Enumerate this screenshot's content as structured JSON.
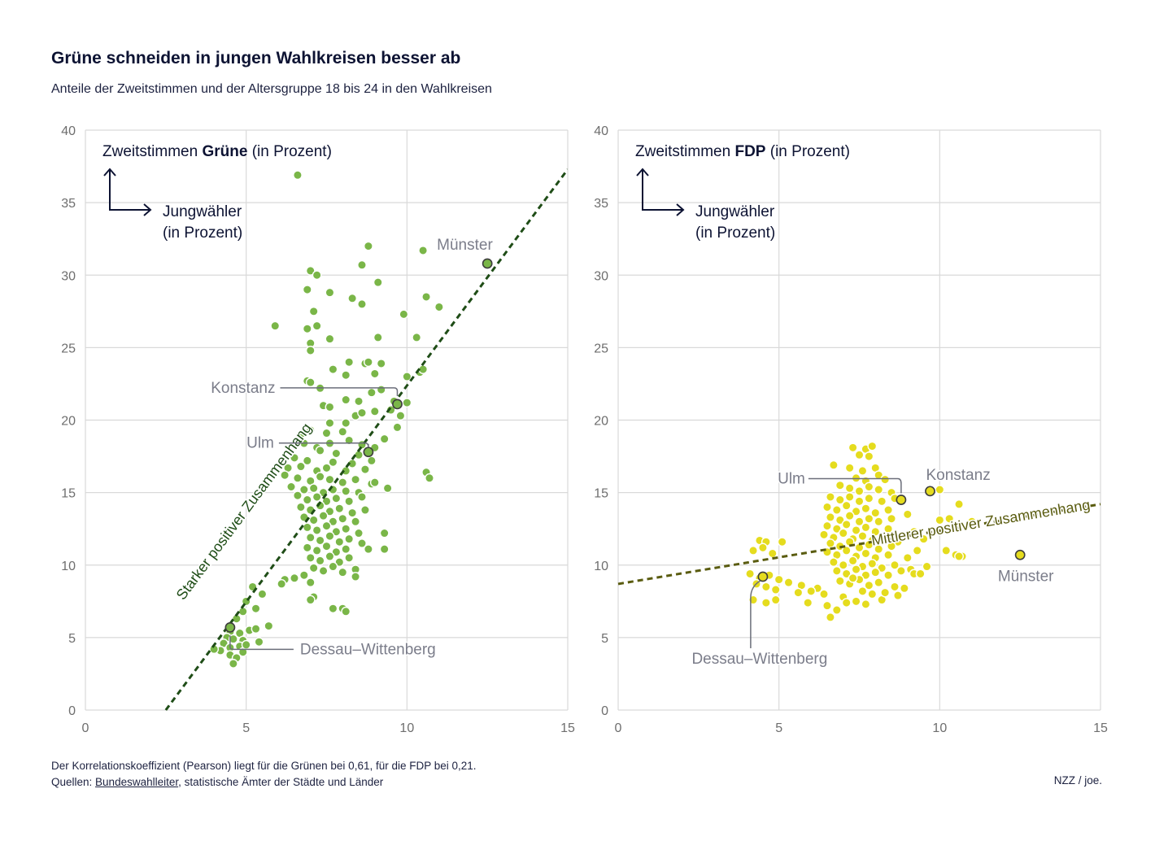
{
  "title": "Grüne schneiden in jungen Wahlkreisen besser ab",
  "subtitle": "Anteile der Zweitstimmen und der Altersgruppe 18 bis 24 in den Wahlkreisen",
  "footer": {
    "note": "Der Korrelationskoeffizient (Pearson) liegt für die Grünen bei 0,61, für die FDP bei 0,21.",
    "sources_prefix": "Quellen: ",
    "sources_link": "Bundeswahlleiter",
    "sources_rest": ", statistische Ämter der Städte und Länder",
    "credit": "NZZ / joe."
  },
  "colors": {
    "gruene": "#7ab648",
    "gruene_trend": "#1f4d17",
    "fdp": "#e5dc1e",
    "fdp_trend": "#5a5c10",
    "grid": "#d9d9d9",
    "axis_text": "#6e6e6e",
    "highlight_text": "#7b7d8a"
  },
  "chart_data": [
    {
      "type": "scatter",
      "party": "Grüne",
      "axis_title_prefix": "Zweitstimmen ",
      "axis_title_bold": "Grüne",
      "axis_title_suffix": " (in Prozent)",
      "x_axis_label_line1": "Jungwähler",
      "x_axis_label_line2": "(in Prozent)",
      "xlim": [
        0,
        15
      ],
      "ylim": [
        0,
        40
      ],
      "xticks": [
        "0",
        "5",
        "10",
        "15"
      ],
      "yticks": [
        "0",
        "5",
        "10",
        "15",
        "20",
        "25",
        "30",
        "35",
        "40"
      ],
      "trend": {
        "label": "Starker positiver Zusammenhang",
        "x0": 2.5,
        "y0": 0,
        "x1": 15,
        "y1": 37.3
      },
      "highlights": [
        {
          "name": "Münster",
          "x": 12.5,
          "y": 30.8
        },
        {
          "name": "Konstanz",
          "x": 9.7,
          "y": 21.1
        },
        {
          "name": "Ulm",
          "x": 8.8,
          "y": 17.8
        },
        {
          "name": "Dessau–Wittenberg",
          "x": 4.5,
          "y": 5.7
        }
      ],
      "points": [
        [
          6.6,
          36.9
        ],
        [
          8.8,
          32
        ],
        [
          10.5,
          31.7
        ],
        [
          7.0,
          30.3
        ],
        [
          7.2,
          30
        ],
        [
          8.6,
          30.7
        ],
        [
          9.1,
          29.5
        ],
        [
          6.9,
          29
        ],
        [
          7.6,
          28.8
        ],
        [
          8.3,
          28.4
        ],
        [
          8.6,
          28
        ],
        [
          10.6,
          28.5
        ],
        [
          11.0,
          27.8
        ],
        [
          7.1,
          27.5
        ],
        [
          9.9,
          27.3
        ],
        [
          5.9,
          26.5
        ],
        [
          6.9,
          26.3
        ],
        [
          7.2,
          26.5
        ],
        [
          7.6,
          25.6
        ],
        [
          9.1,
          25.7
        ],
        [
          10.3,
          25.7
        ],
        [
          7.0,
          25.3
        ],
        [
          7.0,
          24.8
        ],
        [
          8.2,
          24
        ],
        [
          8.7,
          23.9
        ],
        [
          8.8,
          24
        ],
        [
          9.2,
          23.9
        ],
        [
          7.7,
          23.5
        ],
        [
          8.1,
          23.1
        ],
        [
          10.4,
          23.3
        ],
        [
          10.5,
          23.5
        ],
        [
          9.0,
          23.2
        ],
        [
          10.0,
          23
        ],
        [
          6.9,
          22.7
        ],
        [
          7.0,
          22.6
        ],
        [
          7.3,
          22.2
        ],
        [
          9.2,
          22.1
        ],
        [
          8.9,
          21.9
        ],
        [
          8.5,
          21.3
        ],
        [
          8.1,
          21.4
        ],
        [
          9.6,
          21.3
        ],
        [
          10.0,
          21.2
        ],
        [
          7.4,
          21
        ],
        [
          7.6,
          20.9
        ],
        [
          9.0,
          20.6
        ],
        [
          9.5,
          20.7
        ],
        [
          9.8,
          20.3
        ],
        [
          8.4,
          20.3
        ],
        [
          8.6,
          20.5
        ],
        [
          7.6,
          19.8
        ],
        [
          8.1,
          19.8
        ],
        [
          9.7,
          19.5
        ],
        [
          6.7,
          19
        ],
        [
          7.0,
          19.3
        ],
        [
          7.5,
          19.1
        ],
        [
          8.0,
          19.2
        ],
        [
          9.3,
          18.7
        ],
        [
          6.8,
          18.4
        ],
        [
          7.2,
          18.1
        ],
        [
          7.6,
          18.4
        ],
        [
          8.2,
          18.6
        ],
        [
          8.6,
          18.3
        ],
        [
          9.0,
          18.1
        ],
        [
          7.3,
          17.9
        ],
        [
          7.8,
          17.7
        ],
        [
          8.5,
          17.6
        ],
        [
          6.5,
          17.4
        ],
        [
          6.9,
          17.2
        ],
        [
          7.7,
          17.1
        ],
        [
          8.3,
          17.0
        ],
        [
          8.9,
          17.2
        ],
        [
          6.3,
          16.7
        ],
        [
          6.7,
          16.8
        ],
        [
          7.2,
          16.5
        ],
        [
          7.5,
          16.7
        ],
        [
          8.1,
          16.5
        ],
        [
          8.7,
          16.6
        ],
        [
          10.6,
          16.4
        ],
        [
          10.7,
          16.0
        ],
        [
          6.2,
          16.2
        ],
        [
          6.6,
          16.0
        ],
        [
          7.0,
          15.8
        ],
        [
          7.3,
          16.1
        ],
        [
          7.6,
          15.9
        ],
        [
          8.0,
          15.7
        ],
        [
          8.4,
          15.9
        ],
        [
          8.9,
          15.6
        ],
        [
          9.0,
          15.7
        ],
        [
          9.4,
          15.3
        ],
        [
          6.4,
          15.4
        ],
        [
          6.8,
          15.2
        ],
        [
          7.1,
          15.3
        ],
        [
          7.4,
          15.0
        ],
        [
          7.7,
          15.2
        ],
        [
          8.1,
          15.1
        ],
        [
          8.5,
          15.0
        ],
        [
          6.6,
          14.8
        ],
        [
          6.9,
          14.5
        ],
        [
          7.2,
          14.7
        ],
        [
          7.5,
          14.4
        ],
        [
          7.8,
          14.6
        ],
        [
          8.2,
          14.4
        ],
        [
          8.6,
          14.7
        ],
        [
          6.7,
          14.0
        ],
        [
          7.0,
          13.8
        ],
        [
          7.3,
          14.1
        ],
        [
          7.6,
          13.7
        ],
        [
          7.9,
          13.9
        ],
        [
          8.3,
          13.6
        ],
        [
          8.7,
          13.8
        ],
        [
          6.8,
          13.3
        ],
        [
          7.1,
          13.1
        ],
        [
          7.4,
          13.4
        ],
        [
          7.7,
          13.0
        ],
        [
          8.0,
          13.2
        ],
        [
          8.4,
          13.0
        ],
        [
          6.9,
          12.6
        ],
        [
          7.2,
          12.4
        ],
        [
          7.5,
          12.7
        ],
        [
          7.8,
          12.3
        ],
        [
          8.1,
          12.5
        ],
        [
          8.5,
          12.2
        ],
        [
          9.3,
          12.2
        ],
        [
          7.0,
          11.9
        ],
        [
          7.3,
          11.7
        ],
        [
          7.6,
          12.0
        ],
        [
          7.9,
          11.6
        ],
        [
          8.2,
          11.8
        ],
        [
          8.6,
          11.5
        ],
        [
          9.3,
          11.1
        ],
        [
          6.9,
          11.2
        ],
        [
          7.2,
          11.0
        ],
        [
          7.5,
          11.3
        ],
        [
          7.8,
          10.9
        ],
        [
          8.1,
          11.1
        ],
        [
          8.8,
          11.1
        ],
        [
          7.0,
          10.5
        ],
        [
          7.3,
          10.3
        ],
        [
          7.6,
          10.6
        ],
        [
          7.9,
          10.2
        ],
        [
          8.2,
          10.5
        ],
        [
          7.1,
          9.8
        ],
        [
          7.4,
          9.6
        ],
        [
          7.7,
          9.9
        ],
        [
          8.0,
          9.5
        ],
        [
          8.4,
          9.7
        ],
        [
          6.2,
          9.0
        ],
        [
          6.5,
          9.1
        ],
        [
          6.8,
          9.3
        ],
        [
          7.0,
          8.8
        ],
        [
          8.4,
          9.2
        ],
        [
          6.1,
          8.7
        ],
        [
          7.1,
          7.8
        ],
        [
          7.0,
          7.6
        ],
        [
          7.7,
          7.0
        ],
        [
          8.0,
          7.0
        ],
        [
          8.1,
          6.8
        ],
        [
          5.2,
          8.5
        ],
        [
          5.5,
          8.0
        ],
        [
          5.0,
          7.5
        ],
        [
          5.3,
          7.0
        ],
        [
          4.9,
          6.8
        ],
        [
          4.7,
          6.3
        ],
        [
          5.7,
          5.8
        ],
        [
          5.1,
          5.5
        ],
        [
          5.3,
          5.6
        ],
        [
          4.5,
          5.4
        ],
        [
          4.8,
          5.3
        ],
        [
          4.4,
          5.0
        ],
        [
          4.6,
          4.9
        ],
        [
          4.9,
          4.8
        ],
        [
          5.4,
          4.7
        ],
        [
          4.3,
          4.6
        ],
        [
          4.5,
          4.3
        ],
        [
          4.8,
          4.4
        ],
        [
          4.2,
          4.1
        ],
        [
          4.5,
          3.8
        ],
        [
          4.7,
          3.6
        ],
        [
          4.9,
          4.0
        ],
        [
          5.0,
          4.5
        ],
        [
          4.6,
          3.2
        ],
        [
          4.0,
          4.2
        ]
      ]
    },
    {
      "type": "scatter",
      "party": "FDP",
      "axis_title_prefix": "Zweitstimmen ",
      "axis_title_bold": "FDP",
      "axis_title_suffix": " (in Prozent)",
      "x_axis_label_line1": "Jungwähler",
      "x_axis_label_line2": "(in Prozent)",
      "xlim": [
        0,
        15
      ],
      "ylim": [
        0,
        40
      ],
      "xticks": [
        "0",
        "5",
        "10",
        "15"
      ],
      "yticks": [
        "0",
        "5",
        "10",
        "15",
        "20",
        "25",
        "30",
        "35",
        "40"
      ],
      "trend": {
        "label": "Mittlerer positiver Zusammenhang",
        "x0": 0,
        "y0": 8.7,
        "x1": 15,
        "y1": 14.2
      },
      "highlights": [
        {
          "name": "Ulm",
          "x": 8.8,
          "y": 14.5
        },
        {
          "name": "Konstanz",
          "x": 9.7,
          "y": 15.1
        },
        {
          "name": "Münster",
          "x": 12.5,
          "y": 10.7
        },
        {
          "name": "Dessau–Wittenberg",
          "x": 4.5,
          "y": 9.2
        }
      ],
      "points": [
        [
          7.3,
          18.1
        ],
        [
          7.7,
          18.0
        ],
        [
          7.9,
          18.2
        ],
        [
          7.5,
          17.6
        ],
        [
          7.8,
          17.5
        ],
        [
          6.7,
          16.9
        ],
        [
          7.2,
          16.7
        ],
        [
          7.6,
          16.5
        ],
        [
          8.0,
          16.7
        ],
        [
          8.1,
          16.2
        ],
        [
          7.4,
          16.0
        ],
        [
          7.7,
          15.8
        ],
        [
          8.3,
          15.9
        ],
        [
          6.9,
          15.5
        ],
        [
          7.2,
          15.3
        ],
        [
          7.5,
          15.1
        ],
        [
          7.8,
          15.4
        ],
        [
          8.1,
          15.2
        ],
        [
          8.5,
          15.0
        ],
        [
          10.0,
          15.2
        ],
        [
          6.6,
          14.7
        ],
        [
          6.9,
          14.5
        ],
        [
          7.2,
          14.7
        ],
        [
          7.5,
          14.4
        ],
        [
          7.8,
          14.6
        ],
        [
          8.2,
          14.4
        ],
        [
          8.6,
          14.6
        ],
        [
          10.6,
          14.2
        ],
        [
          6.5,
          14.0
        ],
        [
          6.8,
          13.8
        ],
        [
          7.1,
          14.1
        ],
        [
          7.4,
          13.7
        ],
        [
          7.7,
          13.9
        ],
        [
          8.0,
          13.6
        ],
        [
          8.4,
          13.8
        ],
        [
          9.0,
          13.5
        ],
        [
          6.6,
          13.3
        ],
        [
          6.9,
          13.1
        ],
        [
          7.2,
          13.4
        ],
        [
          7.5,
          13.0
        ],
        [
          7.8,
          13.2
        ],
        [
          8.1,
          13.0
        ],
        [
          8.5,
          13.2
        ],
        [
          10.0,
          13.1
        ],
        [
          10.3,
          13.2
        ],
        [
          11.0,
          13.0
        ],
        [
          6.5,
          12.7
        ],
        [
          6.8,
          12.5
        ],
        [
          7.1,
          12.8
        ],
        [
          7.4,
          12.4
        ],
        [
          7.7,
          12.6
        ],
        [
          8.0,
          12.3
        ],
        [
          8.4,
          12.5
        ],
        [
          9.2,
          12.3
        ],
        [
          6.4,
          12.1
        ],
        [
          6.7,
          11.9
        ],
        [
          7.0,
          12.2
        ],
        [
          7.3,
          11.8
        ],
        [
          7.6,
          12.0
        ],
        [
          7.9,
          11.7
        ],
        [
          8.2,
          11.9
        ],
        [
          8.7,
          11.6
        ],
        [
          9.5,
          11.8
        ],
        [
          6.6,
          11.5
        ],
        [
          6.9,
          11.3
        ],
        [
          7.2,
          11.6
        ],
        [
          7.5,
          11.2
        ],
        [
          7.8,
          11.4
        ],
        [
          8.1,
          11.1
        ],
        [
          8.5,
          11.3
        ],
        [
          9.3,
          11.0
        ],
        [
          10.2,
          11.0
        ],
        [
          6.5,
          10.9
        ],
        [
          6.8,
          10.7
        ],
        [
          7.1,
          11.0
        ],
        [
          7.4,
          10.6
        ],
        [
          7.7,
          10.8
        ],
        [
          8.0,
          10.5
        ],
        [
          8.4,
          10.7
        ],
        [
          9.0,
          10.5
        ],
        [
          10.5,
          10.7
        ],
        [
          10.7,
          10.6
        ],
        [
          10.6,
          10.6
        ],
        [
          4.4,
          11.7
        ],
        [
          4.6,
          11.6
        ],
        [
          5.1,
          11.6
        ],
        [
          4.2,
          11.0
        ],
        [
          4.5,
          11.2
        ],
        [
          4.8,
          10.8
        ],
        [
          6.7,
          10.2
        ],
        [
          7.0,
          10.0
        ],
        [
          7.3,
          10.3
        ],
        [
          7.6,
          9.9
        ],
        [
          7.9,
          10.1
        ],
        [
          8.2,
          9.8
        ],
        [
          8.6,
          10.0
        ],
        [
          9.1,
          9.7
        ],
        [
          9.6,
          9.9
        ],
        [
          6.8,
          9.6
        ],
        [
          7.1,
          9.4
        ],
        [
          7.4,
          9.7
        ],
        [
          7.7,
          9.3
        ],
        [
          8.0,
          9.5
        ],
        [
          8.4,
          9.3
        ],
        [
          8.8,
          9.6
        ],
        [
          9.2,
          9.4
        ],
        [
          9.4,
          9.4
        ],
        [
          4.1,
          9.4
        ],
        [
          4.4,
          9.1
        ],
        [
          4.7,
          9.3
        ],
        [
          5.0,
          9.0
        ],
        [
          5.3,
          8.8
        ],
        [
          5.7,
          8.6
        ],
        [
          6.2,
          8.4
        ],
        [
          4.3,
          8.7
        ],
        [
          4.6,
          8.5
        ],
        [
          4.9,
          8.3
        ],
        [
          5.6,
          8.1
        ],
        [
          6.0,
          8.2
        ],
        [
          6.4,
          8.0
        ],
        [
          6.9,
          8.9
        ],
        [
          7.2,
          8.7
        ],
        [
          7.5,
          9.0
        ],
        [
          7.8,
          8.6
        ],
        [
          8.1,
          8.8
        ],
        [
          8.6,
          8.5
        ],
        [
          4.2,
          7.6
        ],
        [
          4.6,
          7.4
        ],
        [
          4.9,
          7.6
        ],
        [
          5.9,
          7.4
        ],
        [
          6.5,
          7.2
        ],
        [
          7.0,
          7.8
        ],
        [
          7.4,
          7.5
        ],
        [
          7.7,
          7.3
        ],
        [
          8.2,
          7.6
        ],
        [
          8.7,
          7.9
        ],
        [
          6.8,
          6.9
        ],
        [
          6.6,
          6.4
        ],
        [
          7.1,
          7.4
        ],
        [
          7.3,
          9.1
        ],
        [
          7.6,
          8.2
        ],
        [
          7.9,
          8.0
        ],
        [
          8.3,
          8.1
        ],
        [
          8.9,
          8.4
        ]
      ]
    }
  ]
}
